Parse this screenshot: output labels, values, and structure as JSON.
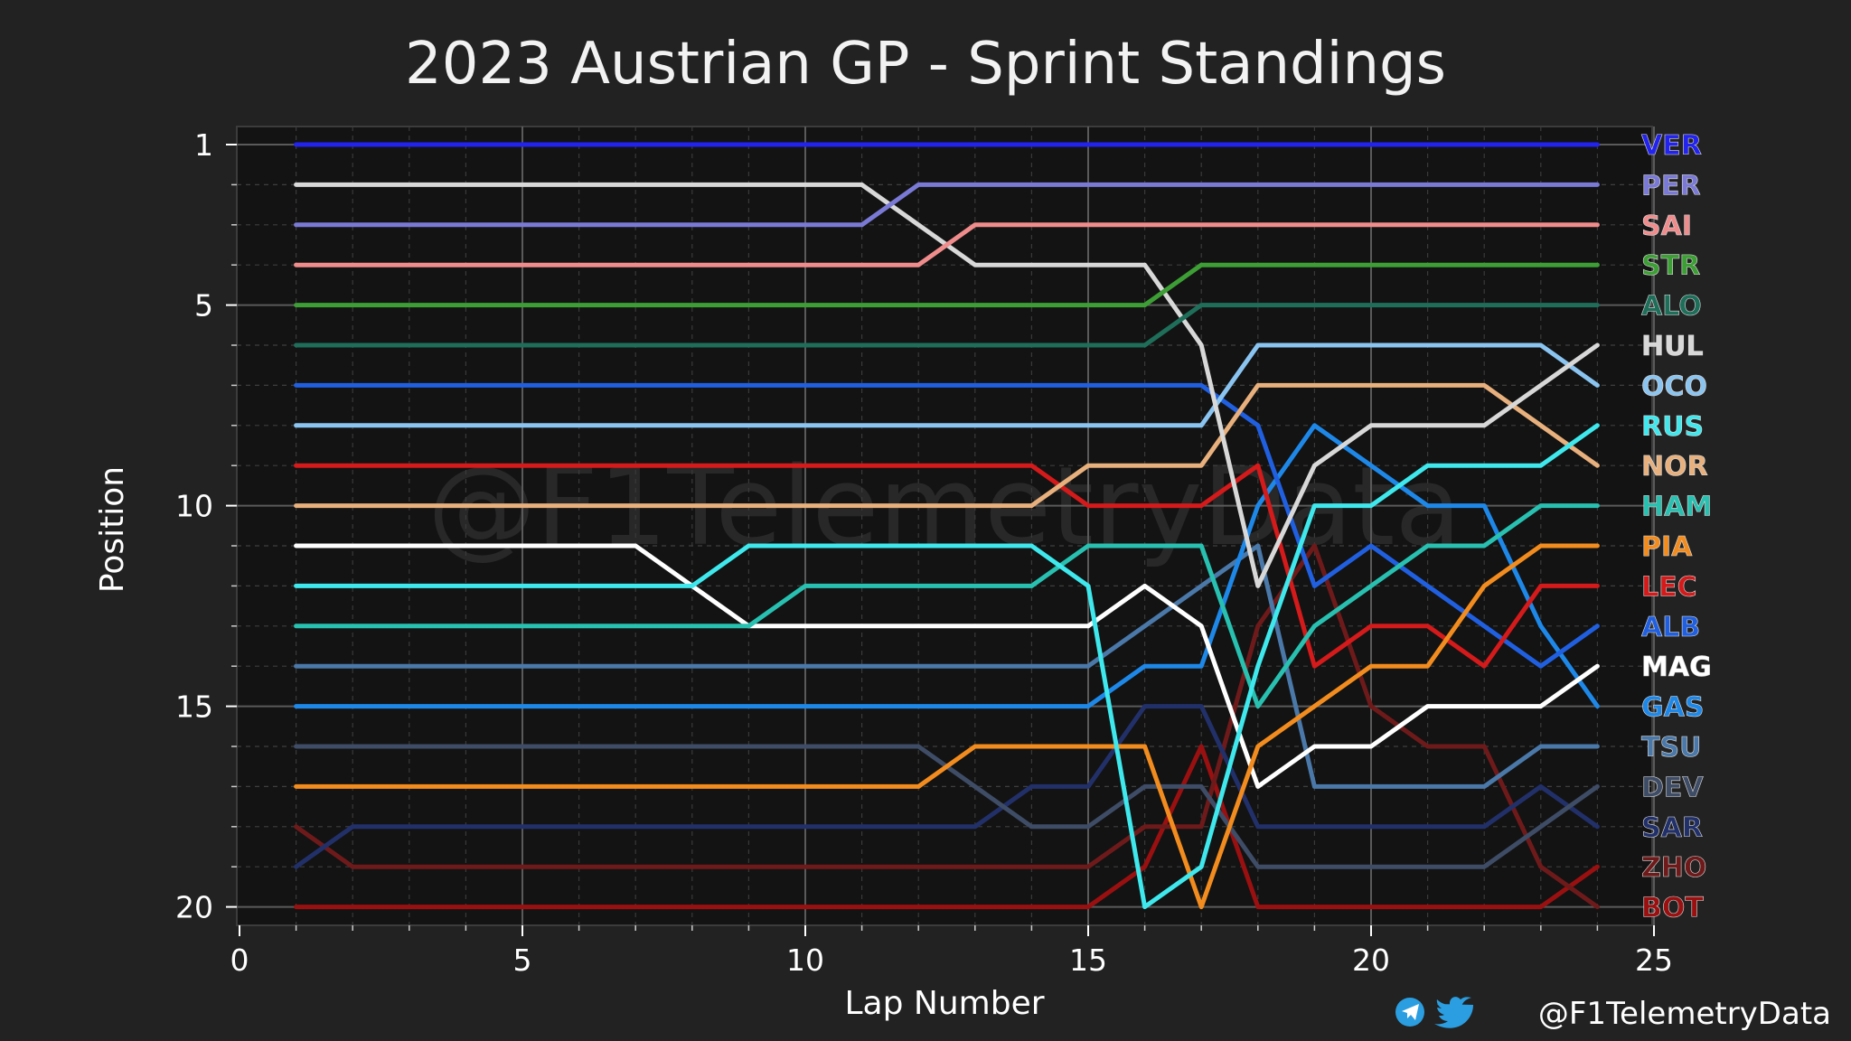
{
  "chart_data": {
    "type": "line",
    "title": "2023 Austrian GP - Sprint Standings",
    "xlabel": "Lap Number",
    "ylabel": "Position",
    "xlim": [
      0,
      25
    ],
    "ylim": [
      20,
      1
    ],
    "y_inverted": true,
    "x_ticks": [
      "0",
      "5",
      "10",
      "15",
      "20",
      "25"
    ],
    "y_ticks": [
      "1",
      "5",
      "10",
      "15",
      "20"
    ],
    "grid": true,
    "legend_placement": "right, at each driver's final position",
    "watermark": "@F1TelemetryData",
    "credit": "@F1TelemetryData",
    "x": [
      1,
      2,
      3,
      4,
      5,
      6,
      7,
      8,
      9,
      10,
      11,
      12,
      13,
      14,
      15,
      16,
      17,
      18,
      19,
      20,
      21,
      22,
      23,
      24
    ],
    "series": [
      {
        "name": "VER",
        "color": "#2323ee",
        "positions": [
          1,
          1,
          1,
          1,
          1,
          1,
          1,
          1,
          1,
          1,
          1,
          1,
          1,
          1,
          1,
          1,
          1,
          1,
          1,
          1,
          1,
          1,
          1,
          1
        ]
      },
      {
        "name": "PER",
        "color": "#7a7ad6",
        "positions": [
          3,
          3,
          3,
          3,
          3,
          3,
          3,
          3,
          3,
          3,
          3,
          2,
          2,
          2,
          2,
          2,
          2,
          2,
          2,
          2,
          2,
          2,
          2,
          2
        ]
      },
      {
        "name": "SAI",
        "color": "#f08c8c",
        "positions": [
          4,
          4,
          4,
          4,
          4,
          4,
          4,
          4,
          4,
          4,
          4,
          4,
          3,
          3,
          3,
          3,
          3,
          3,
          3,
          3,
          3,
          3,
          3,
          3
        ]
      },
      {
        "name": "STR",
        "color": "#3c9e34",
        "positions": [
          5,
          5,
          5,
          5,
          5,
          5,
          5,
          5,
          5,
          5,
          5,
          5,
          5,
          5,
          5,
          5,
          4,
          4,
          4,
          4,
          4,
          4,
          4,
          4
        ]
      },
      {
        "name": "ALO",
        "color": "#1e6e5a",
        "positions": [
          6,
          6,
          6,
          6,
          6,
          6,
          6,
          6,
          6,
          6,
          6,
          6,
          6,
          6,
          6,
          6,
          5,
          5,
          5,
          5,
          5,
          5,
          5,
          5
        ]
      },
      {
        "name": "HUL",
        "color": "#d8d8d8",
        "positions": [
          2,
          2,
          2,
          2,
          2,
          2,
          2,
          2,
          2,
          2,
          2,
          3,
          4,
          4,
          4,
          4,
          6,
          12,
          9,
          8,
          8,
          8,
          7,
          6
        ]
      },
      {
        "name": "OCO",
        "color": "#8ac4f0",
        "positions": [
          8,
          8,
          8,
          8,
          8,
          8,
          8,
          8,
          8,
          8,
          8,
          8,
          8,
          8,
          8,
          8,
          8,
          6,
          6,
          6,
          6,
          6,
          6,
          7
        ]
      },
      {
        "name": "RUS",
        "color": "#3ee8ec",
        "positions": [
          12,
          12,
          12,
          12,
          12,
          12,
          12,
          12,
          11,
          11,
          11,
          11,
          11,
          11,
          12,
          20,
          19,
          14,
          10,
          10,
          9,
          9,
          9,
          8
        ]
      },
      {
        "name": "NOR",
        "color": "#e8b07c",
        "positions": [
          10,
          10,
          10,
          10,
          10,
          10,
          10,
          10,
          10,
          10,
          10,
          10,
          10,
          10,
          9,
          9,
          9,
          7,
          7,
          7,
          7,
          7,
          8,
          9
        ]
      },
      {
        "name": "HAM",
        "color": "#28c0b0",
        "positions": [
          13,
          13,
          13,
          13,
          13,
          13,
          13,
          13,
          13,
          12,
          12,
          12,
          12,
          12,
          11,
          11,
          11,
          15,
          13,
          12,
          11,
          11,
          10,
          10
        ]
      },
      {
        "name": "PIA",
        "color": "#f28c1e",
        "positions": [
          17,
          17,
          17,
          17,
          17,
          17,
          17,
          17,
          17,
          17,
          17,
          17,
          16,
          16,
          16,
          16,
          20,
          16,
          15,
          14,
          14,
          12,
          11,
          11
        ]
      },
      {
        "name": "LEC",
        "color": "#d41a1a",
        "positions": [
          9,
          9,
          9,
          9,
          9,
          9,
          9,
          9,
          9,
          9,
          9,
          9,
          9,
          9,
          10,
          10,
          10,
          9,
          14,
          13,
          13,
          14,
          12,
          12
        ]
      },
      {
        "name": "ALB",
        "color": "#2060e0",
        "positions": [
          7,
          7,
          7,
          7,
          7,
          7,
          7,
          7,
          7,
          7,
          7,
          7,
          7,
          7,
          7,
          7,
          7,
          8,
          12,
          11,
          12,
          13,
          14,
          13
        ]
      },
      {
        "name": "MAG",
        "color": "#ffffff",
        "positions": [
          11,
          11,
          11,
          11,
          11,
          11,
          11,
          12,
          13,
          13,
          13,
          13,
          13,
          13,
          13,
          12,
          13,
          17,
          16,
          16,
          15,
          15,
          15,
          14
        ]
      },
      {
        "name": "GAS",
        "color": "#1e88e8",
        "positions": [
          15,
          15,
          15,
          15,
          15,
          15,
          15,
          15,
          15,
          15,
          15,
          15,
          15,
          15,
          15,
          14,
          14,
          10,
          8,
          9,
          10,
          10,
          13,
          15
        ]
      },
      {
        "name": "TSU",
        "color": "#4a78a8",
        "positions": [
          14,
          14,
          14,
          14,
          14,
          14,
          14,
          14,
          14,
          14,
          14,
          14,
          14,
          14,
          14,
          13,
          12,
          11,
          17,
          17,
          17,
          17,
          16,
          16
        ]
      },
      {
        "name": "DEV",
        "color": "#3e4c66",
        "positions": [
          16,
          16,
          16,
          16,
          16,
          16,
          16,
          16,
          16,
          16,
          16,
          16,
          17,
          18,
          18,
          17,
          17,
          19,
          19,
          19,
          19,
          19,
          18,
          17
        ]
      },
      {
        "name": "SAR",
        "color": "#22306a",
        "positions": [
          19,
          18,
          18,
          18,
          18,
          18,
          18,
          18,
          18,
          18,
          18,
          18,
          18,
          17,
          17,
          15,
          15,
          18,
          18,
          18,
          18,
          18,
          17,
          18
        ]
      },
      {
        "name": "ZHO",
        "color": "#6e1a1a",
        "positions": [
          18,
          19,
          19,
          19,
          19,
          19,
          19,
          19,
          19,
          19,
          19,
          19,
          19,
          19,
          19,
          18,
          18,
          13,
          11,
          15,
          16,
          16,
          19,
          20
        ]
      },
      {
        "name": "BOT",
        "color": "#9a1010",
        "positions": [
          20,
          20,
          20,
          20,
          20,
          20,
          20,
          20,
          20,
          20,
          20,
          20,
          20,
          20,
          20,
          19,
          16,
          20,
          20,
          20,
          20,
          20,
          20,
          19
        ]
      }
    ],
    "legend_order": [
      "VER",
      "PER",
      "SAI",
      "STR",
      "ALO",
      "HUL",
      "OCO",
      "RUS",
      "NOR",
      "HAM",
      "PIA",
      "LEC",
      "ALB",
      "MAG",
      "GAS",
      "TSU",
      "DEV",
      "SAR",
      "ZHO",
      "BOT"
    ]
  }
}
